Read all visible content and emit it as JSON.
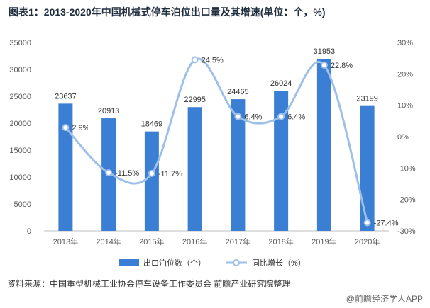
{
  "title": "图表1：2013-2020年中国机械式停车泊位出口量及其增速(单位：个，%)",
  "source": "资料来源：中国重型机械工业协会停车设备工作委员会 前瞻产业研究院整理",
  "brand": "@前瞻经济学人APP",
  "chart_data": {
    "type": "bar",
    "categories": [
      "2013年",
      "2014年",
      "2015年",
      "2016年",
      "2017年",
      "2018年",
      "2019年",
      "2020年"
    ],
    "series": [
      {
        "name": "出口泊位数（个）",
        "kind": "bar",
        "values": [
          23637,
          20913,
          18469,
          22995,
          24465,
          26024,
          31953,
          23199
        ],
        "labels": [
          "23637",
          "20913",
          "18469",
          "22995",
          "24465",
          "26024",
          "31953",
          "23199"
        ],
        "color": "#3b7fd4"
      },
      {
        "name": "同比增长（%）",
        "kind": "line",
        "axis": "right",
        "values": [
          2.9,
          -11.5,
          -11.7,
          24.5,
          6.4,
          6.4,
          22.8,
          -27.4
        ],
        "labels": [
          "2.9%",
          "-11.5%",
          "-11.7%",
          "24.5%",
          "6.4%",
          "6.4%",
          "22.8%",
          "-27.4%"
        ],
        "color": "#9ec0e8"
      }
    ],
    "y_left": {
      "min": 0,
      "max": 35000,
      "ticks": [
        "0",
        "5000",
        "10000",
        "15000",
        "20000",
        "25000",
        "30000",
        "35000"
      ]
    },
    "y_right": {
      "min": -30,
      "max": 30,
      "ticks": [
        "-30%",
        "-20%",
        "-10%",
        "0%",
        "10%",
        "20%",
        "30%"
      ]
    },
    "grid": false,
    "legend_position": "bottom"
  }
}
